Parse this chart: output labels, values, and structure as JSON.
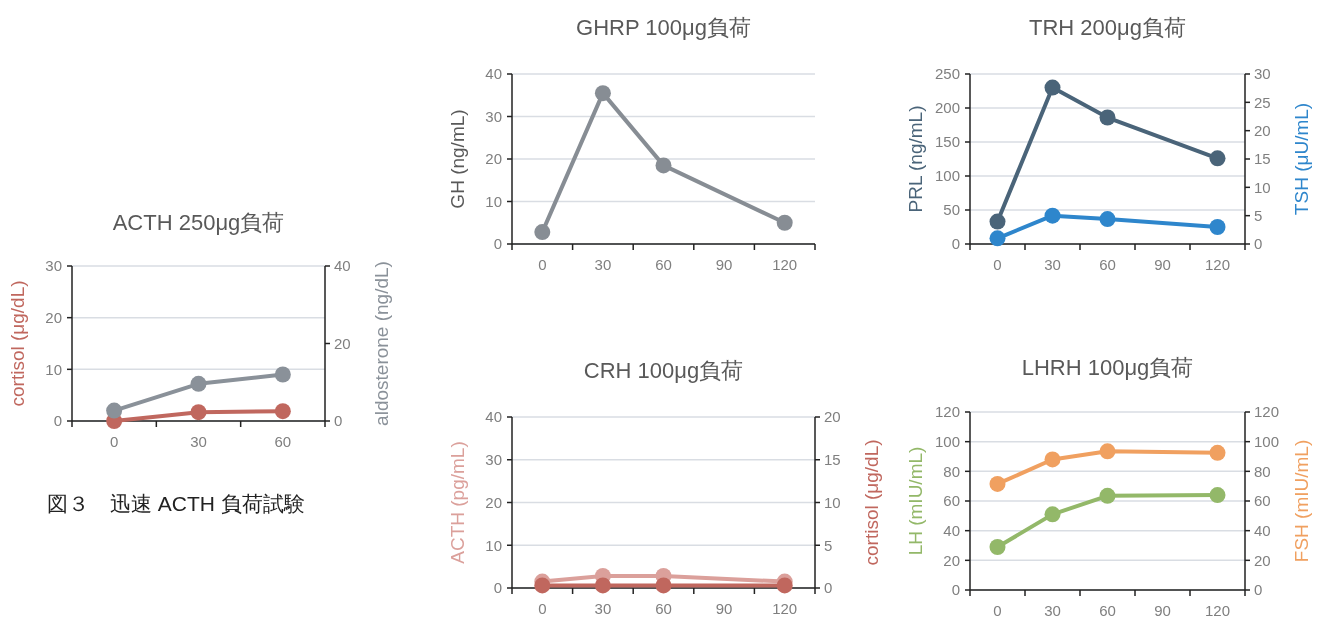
{
  "chart_data": [
    {
      "type": "line",
      "title": "ACTH 250μg負荷",
      "ylabel": "cortisol (μg/dL)",
      "y2label": "aldosterone (ng/dL)",
      "categories": [
        "0",
        "30",
        "60"
      ],
      "ylim": [
        0,
        30
      ],
      "yticks": [
        0,
        10,
        20,
        30
      ],
      "y2lim": [
        0,
        40
      ],
      "y2ticks": [
        0,
        20,
        40
      ],
      "grid": "y",
      "marker": "circle",
      "line_style": "solid",
      "annotations": [
        "図３　迅速 ACTH 負荷試験"
      ],
      "series": [
        {
          "name": null,
          "color": "#c0675e",
          "values": [
            0,
            1.7,
            1.9
          ]
        },
        {
          "name": null,
          "color": "#8a9199",
          "axis": "y2",
          "values": [
            2.7,
            9.6,
            12
          ]
        }
      ]
    },
    {
      "type": "line",
      "title": "GHRP 100μg負荷",
      "ylabel": "GH (ng/mL)",
      "categories": [
        "0",
        "30",
        "60",
        "90",
        "120"
      ],
      "ylim": [
        0,
        40
      ],
      "yticks": [
        0,
        10,
        20,
        30,
        40
      ],
      "grid": "y",
      "marker": "circle",
      "line_style": "solid",
      "series": [
        {
          "name": null,
          "color": "#878d94",
          "values": [
            2.8,
            35.5,
            18.5,
            null,
            5
          ]
        }
      ]
    },
    {
      "type": "line",
      "title": "TRH 200μg負荷",
      "ylabel": "PRL (ng/mL)",
      "y2label": "TSH (μU/mL)",
      "categories": [
        "0",
        "30",
        "60",
        "90",
        "120"
      ],
      "ylim": [
        0,
        250
      ],
      "yticks": [
        0,
        50,
        100,
        150,
        200,
        250
      ],
      "y2lim": [
        0,
        30
      ],
      "y2ticks": [
        0,
        5,
        10,
        15,
        20,
        25,
        30
      ],
      "grid": "y",
      "marker": "circle",
      "line_style": "solid",
      "series": [
        {
          "name": null,
          "color": "#4a6479",
          "values": [
            33,
            230,
            186,
            null,
            126
          ]
        },
        {
          "name": null,
          "color": "#2e86cc",
          "axis": "y2",
          "values": [
            1,
            5,
            4.4,
            null,
            3
          ]
        }
      ]
    },
    {
      "type": "line",
      "title": "CRH 100μg負荷",
      "ylabel": "ACTH (pg/mL)",
      "y2label": "cortisol (μg/dL)",
      "categories": [
        "0",
        "30",
        "60",
        "90",
        "120"
      ],
      "ylim": [
        0,
        40
      ],
      "yticks": [
        0,
        10,
        20,
        30,
        40
      ],
      "y2lim": [
        0,
        20
      ],
      "y2ticks": [
        0,
        5,
        10,
        15,
        20
      ],
      "grid": "y",
      "marker": "circle",
      "line_style": "solid",
      "series": [
        {
          "name": null,
          "color": "#dba09b",
          "values": [
            1.5,
            2.8,
            2.8,
            null,
            1.5
          ]
        },
        {
          "name": null,
          "color": "#c0675e",
          "axis": "y2",
          "values": [
            0.3,
            0.3,
            0.3,
            null,
            0.3
          ]
        }
      ]
    },
    {
      "type": "line",
      "title": "LHRH 100μg負荷",
      "ylabel": "LH (mIU/mL)",
      "y2label": "FSH (mIU/mL)",
      "categories": [
        "0",
        "30",
        "60",
        "90",
        "120"
      ],
      "ylim": [
        0,
        120
      ],
      "yticks": [
        0,
        20,
        40,
        60,
        80,
        100,
        120
      ],
      "y2lim": [
        0,
        120
      ],
      "y2ticks": [
        0,
        20,
        40,
        60,
        80,
        100,
        120
      ],
      "grid": "y",
      "marker": "circle",
      "line_style": "solid",
      "series": [
        {
          "name": null,
          "color": "#93b869",
          "values": [
            29,
            51,
            63.5,
            null,
            64
          ]
        },
        {
          "name": null,
          "color": "#f0a060",
          "axis": "y2",
          "values": [
            71.5,
            88,
            93.5,
            null,
            92.5
          ]
        }
      ]
    }
  ]
}
